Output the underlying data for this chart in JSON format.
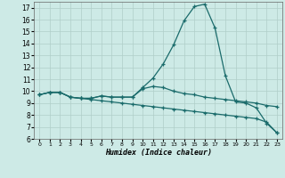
{
  "xlabel": "Humidex (Indice chaleur)",
  "bg_color": "#cdeae6",
  "grid_color": "#b0cec9",
  "line_color": "#1a6b6b",
  "x_values": [
    0,
    1,
    2,
    3,
    4,
    5,
    6,
    7,
    8,
    9,
    10,
    11,
    12,
    13,
    14,
    15,
    16,
    17,
    18,
    19,
    20,
    21,
    22,
    23
  ],
  "line1_y": [
    9.7,
    9.9,
    9.9,
    9.5,
    9.4,
    9.4,
    9.6,
    9.5,
    9.5,
    9.5,
    10.3,
    11.1,
    12.3,
    13.9,
    15.9,
    17.1,
    17.3,
    15.3,
    11.3,
    9.1,
    9.0,
    8.6,
    7.3,
    6.5
  ],
  "line2_y": [
    9.7,
    9.9,
    9.9,
    9.5,
    9.4,
    9.4,
    9.6,
    9.5,
    9.5,
    9.5,
    10.2,
    10.4,
    10.3,
    10.0,
    9.8,
    9.7,
    9.5,
    9.4,
    9.3,
    9.2,
    9.1,
    9.0,
    8.8,
    8.7
  ],
  "line3_y": [
    9.7,
    9.9,
    9.9,
    9.5,
    9.4,
    9.3,
    9.2,
    9.1,
    9.0,
    8.9,
    8.8,
    8.7,
    8.6,
    8.5,
    8.4,
    8.3,
    8.2,
    8.1,
    8.0,
    7.9,
    7.8,
    7.7,
    7.4,
    6.5
  ],
  "ylim": [
    6,
    17.5
  ],
  "xlim": [
    -0.5,
    23.5
  ],
  "yticks": [
    6,
    7,
    8,
    9,
    10,
    11,
    12,
    13,
    14,
    15,
    16,
    17
  ],
  "xticks": [
    0,
    1,
    2,
    3,
    4,
    5,
    6,
    7,
    8,
    9,
    10,
    11,
    12,
    13,
    14,
    15,
    16,
    17,
    18,
    19,
    20,
    21,
    22,
    23
  ],
  "xtick_labels": [
    "0",
    "1",
    "2",
    "3",
    "4",
    "5",
    "6",
    "7",
    "8",
    "9",
    "10",
    "11",
    "12",
    "13",
    "14",
    "15",
    "16",
    "17",
    "18",
    "19",
    "20",
    "21",
    "22",
    "23"
  ]
}
